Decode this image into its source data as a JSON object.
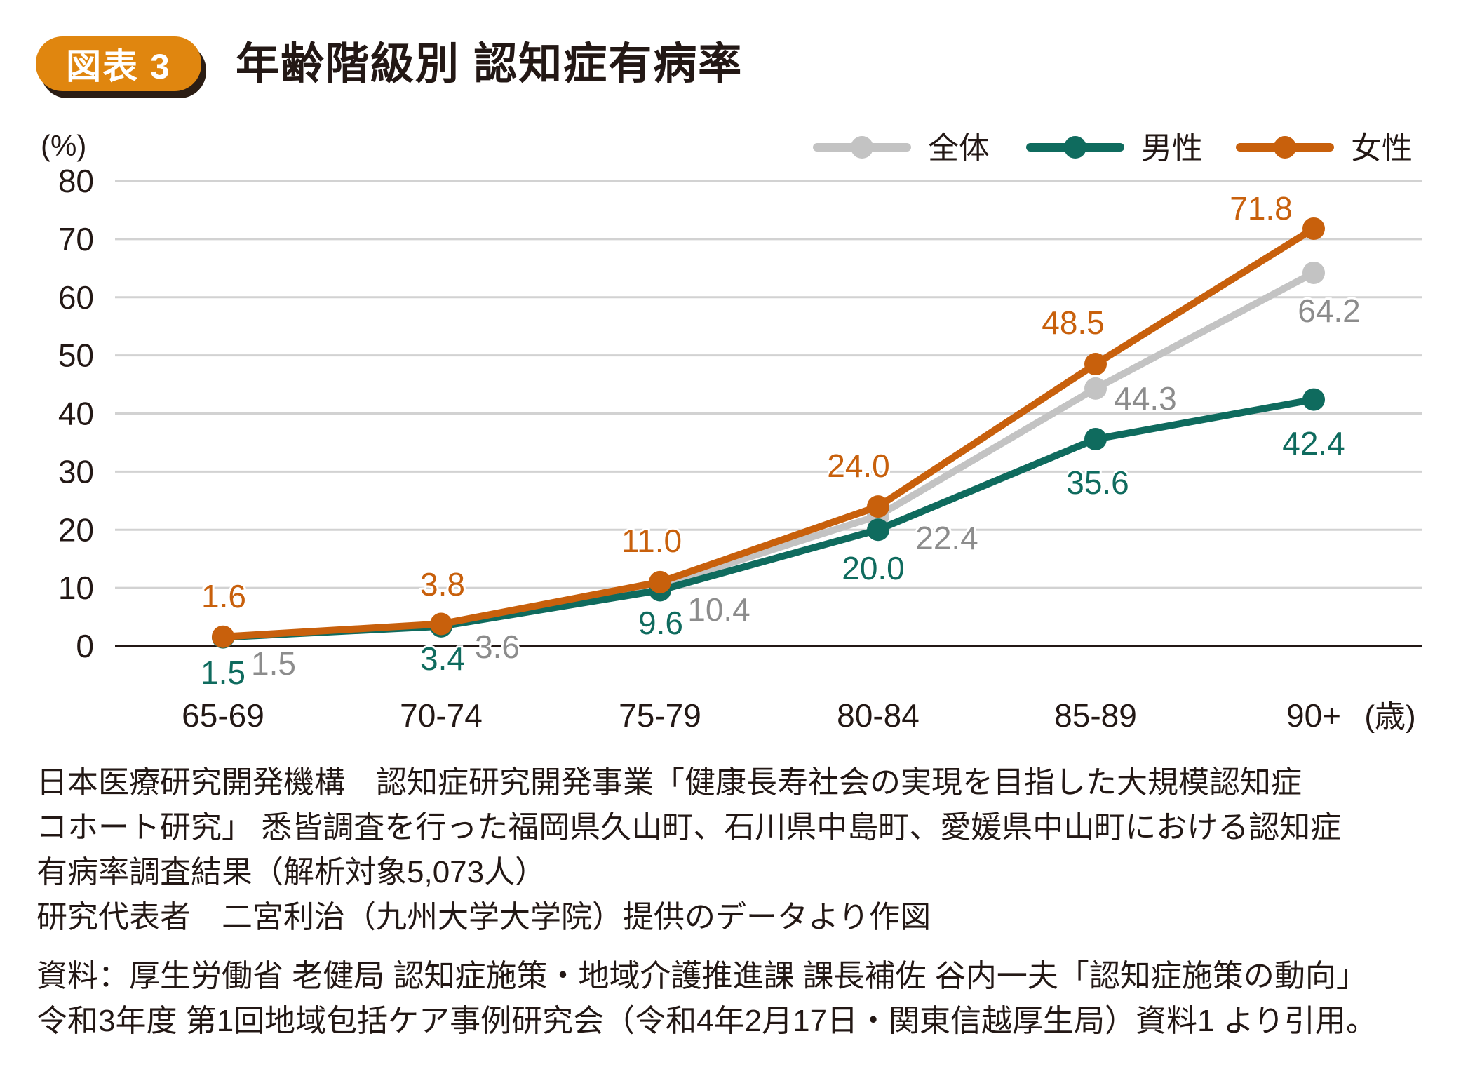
{
  "header": {
    "badge": "図表 3",
    "title": "年齢階級別 認知症有病率"
  },
  "chart_data": {
    "type": "line",
    "title": "年齢階級別 認知症有病率",
    "ylabel": "(%)",
    "xlabel": "(歳)",
    "ylim": [
      0,
      80
    ],
    "yticks": [
      "0",
      "10",
      "20",
      "30",
      "40",
      "50",
      "60",
      "70",
      "80"
    ],
    "categories": [
      "65-69",
      "70-74",
      "75-79",
      "80-84",
      "85-89",
      "90+"
    ],
    "grid": true,
    "legend_position": "top-right",
    "series": [
      {
        "name": "全体",
        "color": "#c3c3c3",
        "label_color": "#8c8c8c",
        "values": [
          1.5,
          3.6,
          10.4,
          22.4,
          44.3,
          64.2
        ],
        "labels": [
          "1.5",
          "3.6",
          "10.4",
          "22.4",
          "44.3",
          "64.2"
        ]
      },
      {
        "name": "男性",
        "color": "#0f6b5e",
        "label_color": "#0f6b5e",
        "values": [
          1.5,
          3.4,
          9.6,
          20.0,
          35.6,
          42.4
        ],
        "labels": [
          "1.5",
          "3.4",
          "9.6",
          "20.0",
          "35.6",
          "42.4"
        ]
      },
      {
        "name": "女性",
        "color": "#c8600c",
        "label_color": "#c8600c",
        "values": [
          1.6,
          3.8,
          11.0,
          24.0,
          48.5,
          71.8
        ],
        "labels": [
          "1.6",
          "3.8",
          "11.0",
          "24.0",
          "48.5",
          "71.8"
        ]
      }
    ]
  },
  "notes": {
    "lines": [
      "日本医療研究開発機構　認知症研究開発事業「健康長寿社会の実現を目指した大規模認知症",
      "コホート研究」 悉皆調査を行った福岡県久山町、石川県中島町、愛媛県中山町における認知症",
      "有病率調査結果（解析対象5,073人）",
      "研究代表者　二宮利治（九州大学大学院）提供のデータより作図"
    ],
    "source_lines": [
      "資料：厚生労働省 老健局 認知症施策・地域介護推進課 課長補佐 谷内一夫「認知症施策の動向」",
      "令和3年度 第1回地域包括ケア事例研究会（令和4年2月17日・関東信越厚生局）資料1 より引用。"
    ]
  }
}
